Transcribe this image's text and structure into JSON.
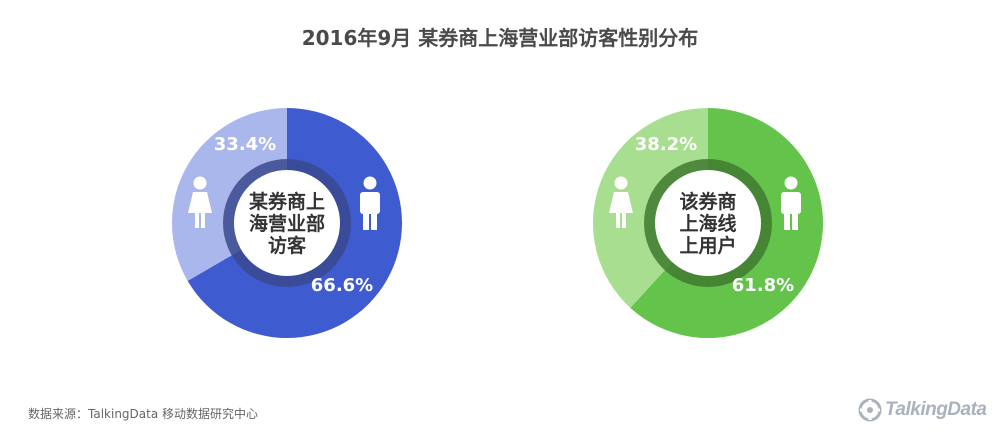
{
  "title": "2016年9月  某券商上海营业部访客性别分布",
  "source": "数据来源：TalkingData 移动数据研究中心",
  "brand": "TalkingData",
  "chart_data": [
    {
      "type": "pie",
      "variant": "donut",
      "center_label": [
        "某券商上",
        "海营业部",
        "访客"
      ],
      "slices": [
        {
          "category": "male",
          "value": 66.6,
          "label": "66.6%",
          "color": "#3e5bcf"
        },
        {
          "category": "female",
          "value": 33.4,
          "label": "33.4%",
          "color": "#aab7ec"
        }
      ],
      "center_ring_color": "#3a4a8f",
      "icons": [
        "female-icon",
        "male-icon"
      ]
    },
    {
      "type": "pie",
      "variant": "donut",
      "center_label": [
        "该券商",
        "上海线",
        "上用户"
      ],
      "slices": [
        {
          "category": "male",
          "value": 61.8,
          "label": "61.8%",
          "color": "#63c34a"
        },
        {
          "category": "female",
          "value": 38.2,
          "label": "38.2%",
          "color": "#a7de8f"
        }
      ],
      "center_ring_color": "#3f7a30",
      "icons": [
        "female-icon",
        "male-icon"
      ]
    }
  ]
}
